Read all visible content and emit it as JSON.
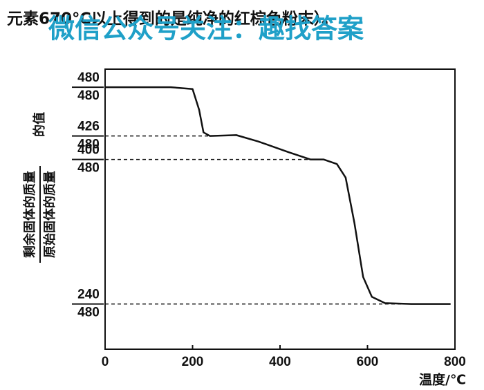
{
  "header_text": "元素670℃以上得到的是纯净的红棕色粉末）。",
  "watermark": "微信公众号关注：趣找答案",
  "chart_data": {
    "type": "line",
    "x_label": "温度/℃",
    "y_label_numerator": "剩余固体的质量",
    "y_label_denominator": "原始固体的质量",
    "y_label_suffix": "的值",
    "y_denominator": "480",
    "x": [
      0,
      150,
      200,
      215,
      225,
      240,
      300,
      350,
      420,
      470,
      500,
      530,
      550,
      570,
      590,
      610,
      640,
      700,
      790
    ],
    "series": [
      {
        "color": "#111111",
        "values": [
          480,
          480,
          478,
          455,
          430,
          426,
          427,
          420,
          408,
          400,
          400,
          395,
          380,
          330,
          270,
          248,
          241,
          240,
          240
        ]
      }
    ],
    "xlim": [
      0,
      800
    ],
    "xticks": [
      0,
      200,
      400,
      600,
      800
    ],
    "ylim": [
      190,
      500
    ],
    "yticks": [
      480,
      426,
      400,
      240
    ]
  }
}
